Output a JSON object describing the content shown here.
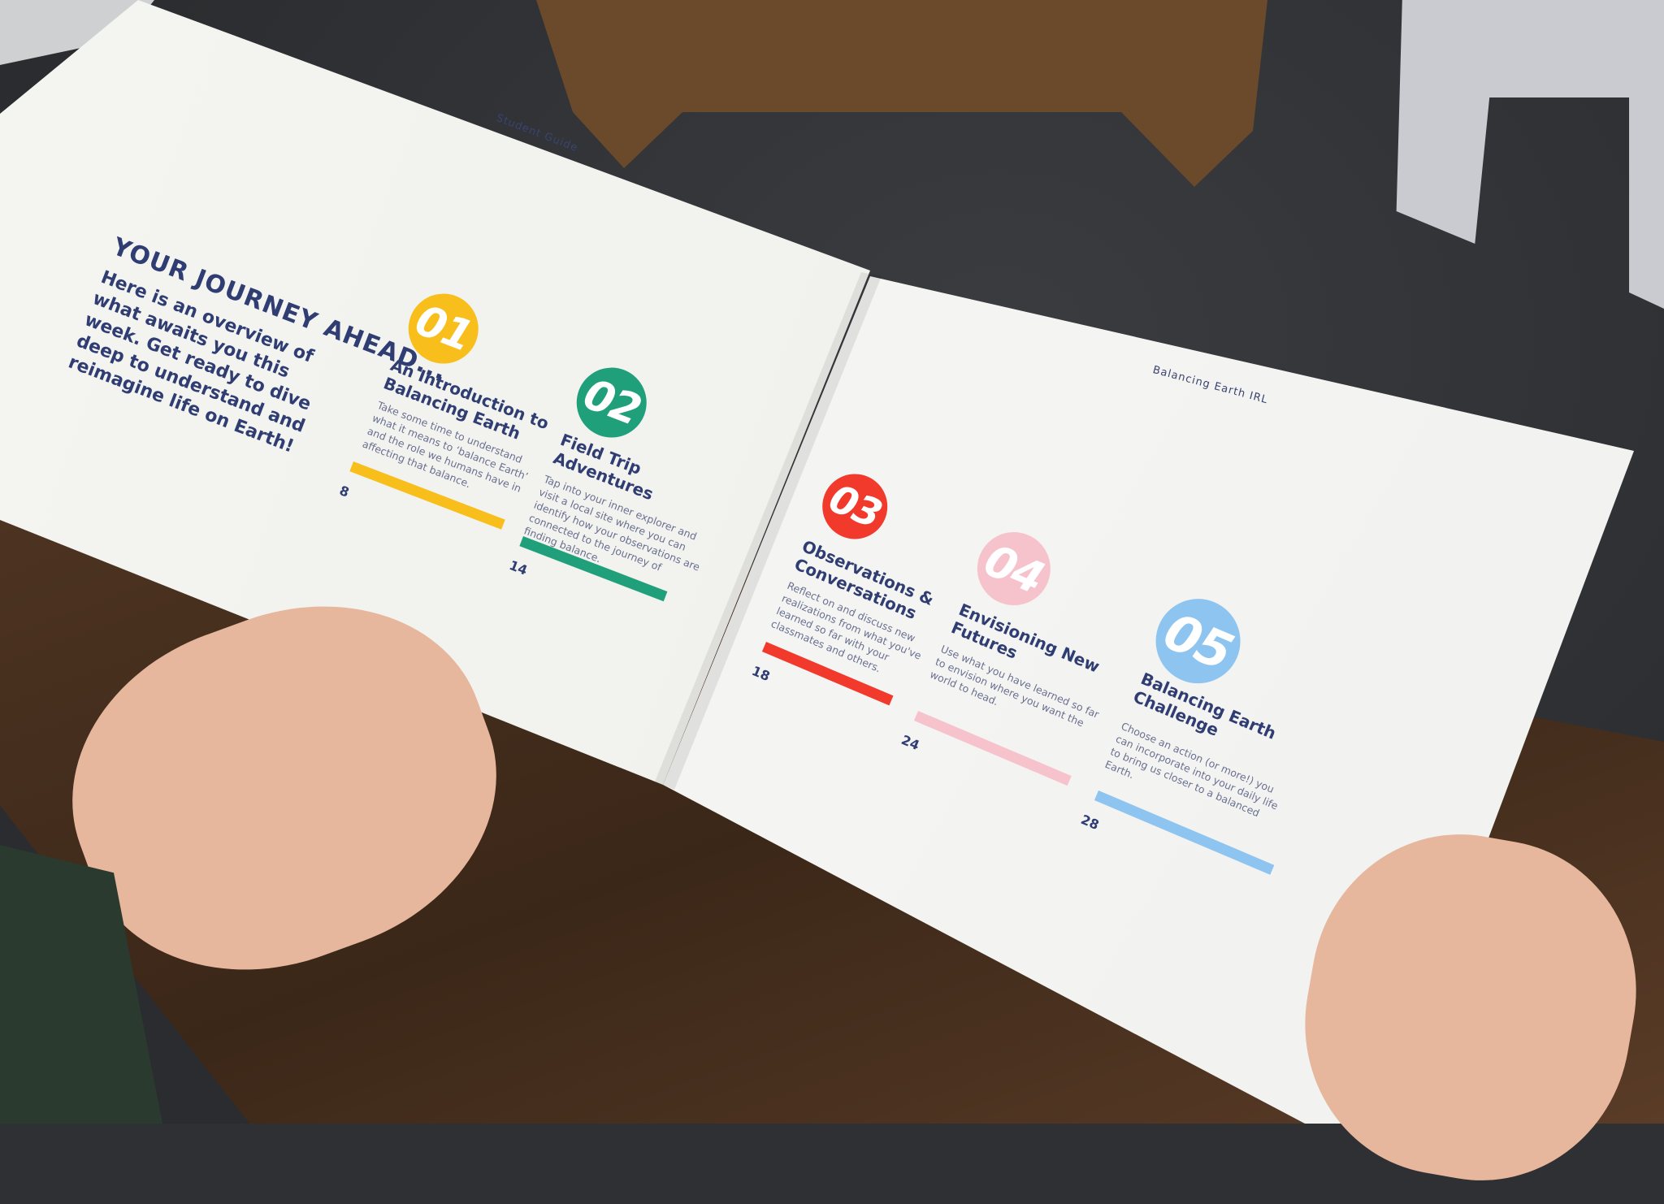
{
  "left_page": {
    "running_header": "Student Guide",
    "heading": "YOUR JOURNEY AHEAD...",
    "intro": "Here is an overview of what awaits you this week. Get ready to dive deep to understand and reimagine life on Earth!"
  },
  "right_page": {
    "running_header": "Balancing Earth IRL"
  },
  "sections": [
    {
      "number": "01",
      "title": "An Introduction to Balancing Earth",
      "description": "Take some time to understand what it means to ‘balance Earth’ and the role we humans have in affecting that balance.",
      "page": "8",
      "color": "#f8bf1c"
    },
    {
      "number": "02",
      "title": "Field Trip Adventures",
      "description": "Tap into your inner explorer and visit a local site where you can identify how your observations are connected to the journey of finding balance.",
      "page": "14",
      "color": "#20a07a"
    },
    {
      "number": "03",
      "title": "Observations & Conversations",
      "description": "Reflect on and discuss new realizations from what you've learned so far with your classmates and others.",
      "page": "18",
      "color": "#f13a2c"
    },
    {
      "number": "04",
      "title": "Envisioning New Futures",
      "description": "Use what you have learned so far to envision where you want the world to head.",
      "page": "24",
      "color": "#f6c3cc"
    },
    {
      "number": "05",
      "title": "Balancing Earth Challenge",
      "description": "Choose an action (or more!) you can incorporate into your daily life to bring us closer to a balanced Earth.",
      "page": "28",
      "color": "#8ec4f0"
    }
  ]
}
